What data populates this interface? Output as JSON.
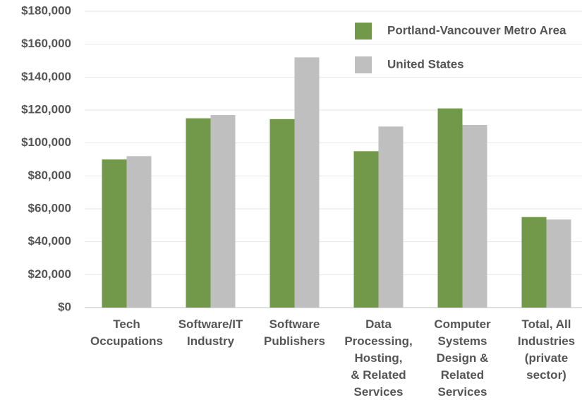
{
  "chart_data": {
    "type": "bar",
    "categories": [
      "Tech\nOccupations",
      "Software/IT\nIndustry",
      "Software\nPublishers",
      "Data\nProcessing,\nHosting,\n& Related\nServices",
      "Computer\nSystems\nDesign &\nRelated\nServices",
      "Total, All\nIndustries\n(private\nsector)"
    ],
    "series": [
      {
        "name": "Portland-Vancouver Metro Area",
        "color": "#72984a",
        "values": [
          90000,
          115000,
          114500,
          95000,
          121000,
          55000
        ]
      },
      {
        "name": "United States",
        "color": "#bfbfbf",
        "values": [
          92000,
          117000,
          152000,
          110000,
          111000,
          53500
        ]
      }
    ],
    "ylim": [
      0,
      180000
    ],
    "yticks": [
      {
        "value": 0,
        "label": "$0"
      },
      {
        "value": 20000,
        "label": "$20,000"
      },
      {
        "value": 40000,
        "label": "$40,000"
      },
      {
        "value": 60000,
        "label": "$60,000"
      },
      {
        "value": 80000,
        "label": "$80,000"
      },
      {
        "value": 100000,
        "label": "$100,000"
      },
      {
        "value": 120000,
        "label": "$120,000"
      },
      {
        "value": 140000,
        "label": "$140,000"
      },
      {
        "value": 160000,
        "label": "$160,000"
      },
      {
        "value": 180000,
        "label": "$180,000"
      }
    ],
    "grid": true,
    "legend": "top-right"
  }
}
